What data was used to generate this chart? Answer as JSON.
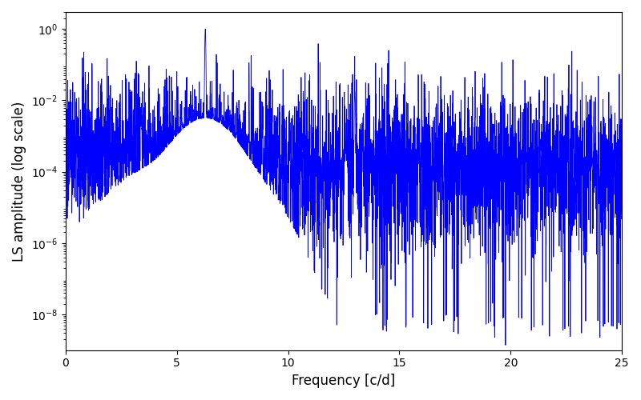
{
  "title": "",
  "xlabel": "Frequency [c/d]",
  "ylabel": "LS amplitude (log scale)",
  "xlim": [
    0,
    25
  ],
  "ylim_low": 1e-09,
  "ylim_high": 3.0,
  "line_color": "#0000ff",
  "line_width": 0.6,
  "yscale": "log",
  "freq_min": 0.0,
  "freq_max": 25.0,
  "n_points": 5000,
  "peak1_freq": 6.28,
  "peak1_amp": 1.0,
  "peak2_freq": 13.0,
  "peak2_amp": 0.018,
  "peak3_freq": 3.4,
  "peak3_amp": 0.003,
  "noise_floor": 8e-05,
  "yticks": [
    1e-08,
    1e-06,
    0.0001,
    0.01,
    1.0
  ],
  "xticks": [
    0,
    5,
    10,
    15,
    20,
    25
  ],
  "figsize": [
    8.0,
    5.0
  ],
  "dpi": 100
}
